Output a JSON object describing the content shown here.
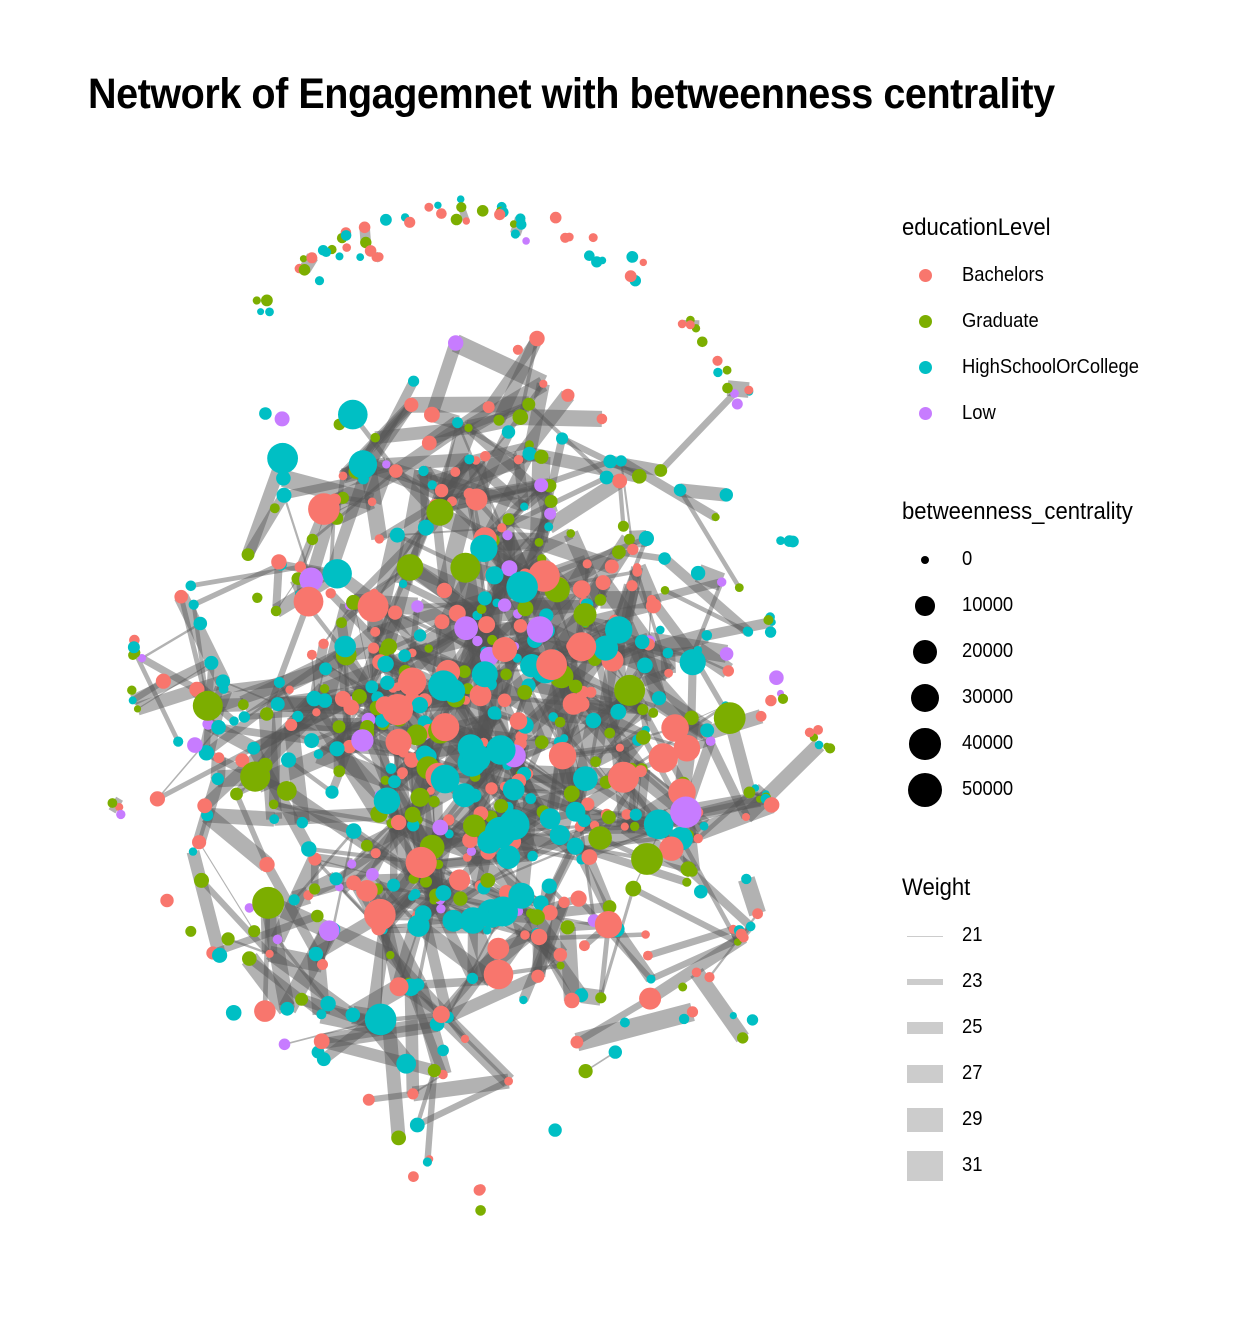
{
  "title": "Network of Engagemnet with betweenness centrality",
  "legends": {
    "color": {
      "title": "educationLevel",
      "items": [
        {
          "label": "Bachelors",
          "color": "#F8766D"
        },
        {
          "label": "Graduate",
          "color": "#7CAE00"
        },
        {
          "label": "HighSchoolOrCollege",
          "color": "#00BFC4"
        },
        {
          "label": "Low",
          "color": "#C77CFF"
        }
      ]
    },
    "size": {
      "title": "betweenness_centrality",
      "items": [
        {
          "label": "0",
          "value": 0
        },
        {
          "label": "10000",
          "value": 10000
        },
        {
          "label": "20000",
          "value": 20000
        },
        {
          "label": "30000",
          "value": 30000
        },
        {
          "label": "40000",
          "value": 40000
        },
        {
          "label": "50000",
          "value": 50000
        }
      ]
    },
    "weight": {
      "title": "Weight",
      "items": [
        {
          "label": "21",
          "value": 21
        },
        {
          "label": "23",
          "value": 23
        },
        {
          "label": "25",
          "value": 25
        },
        {
          "label": "27",
          "value": 27
        },
        {
          "label": "29",
          "value": 29
        },
        {
          "label": "31",
          "value": 31
        }
      ]
    }
  },
  "chart_data": {
    "type": "network",
    "node_color_field": "educationLevel",
    "node_size_field": "betweenness_centrality",
    "edge_width_field": "Weight",
    "categories": [
      "Bachelors",
      "Graduate",
      "HighSchoolOrCollege",
      "Low"
    ],
    "colors": {
      "Bachelors": "#F8766D",
      "Graduate": "#7CAE00",
      "HighSchoolOrCollege": "#00BFC4",
      "Low": "#C77CFF"
    },
    "edge_color": "#555555",
    "size_range": [
      0,
      50000
    ],
    "weight_range": [
      21,
      31
    ]
  }
}
